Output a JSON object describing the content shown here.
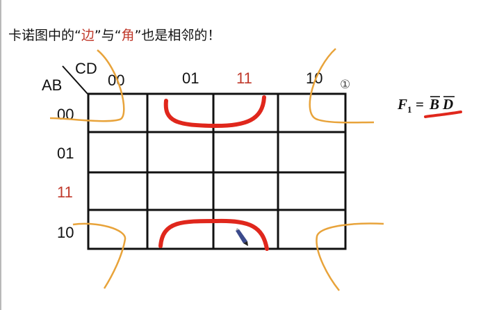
{
  "heading": {
    "before": "卡诺图中的“",
    "word1": "边",
    "middle": "”与“",
    "word2": "角",
    "after": "”也是相邻的！"
  },
  "kmap": {
    "row_var": "AB",
    "col_var": "CD",
    "col_labels": [
      "00",
      "01",
      "11",
      "10"
    ],
    "row_labels": [
      "00",
      "01",
      "11",
      "10"
    ],
    "highlight_label": "11",
    "highlight_color": "#c0392b"
  },
  "badge": "①",
  "formula": {
    "lhs": "F",
    "sub": "1",
    "eq": "=",
    "rhs1": "B",
    "rhs2": "D"
  },
  "colors": {
    "red_marker": "#e0271c",
    "orange_marker": "#e8a33a",
    "grid": "#111111"
  }
}
